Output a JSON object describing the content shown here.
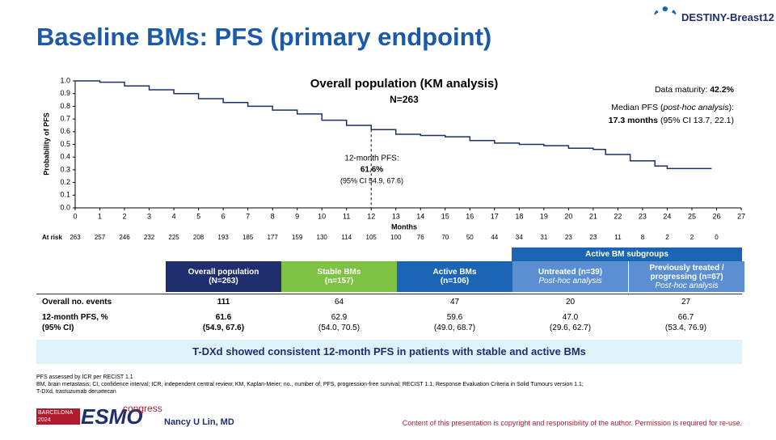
{
  "header": {
    "title": "Baseline BMs: PFS (primary endpoint)",
    "logo": "DESTINY-Breast12"
  },
  "chart_data": {
    "type": "step",
    "title": "Overall population (KM analysis)",
    "subtitle": "N=263",
    "x_label": "Months",
    "y_label": "Probability of PFS",
    "color": "#1f2f6e",
    "x": [
      0,
      1,
      2,
      3,
      4,
      5,
      6,
      7,
      8,
      9,
      10,
      11,
      12,
      13,
      14,
      15,
      16,
      17,
      18,
      19,
      20,
      21,
      21.5,
      22,
      22.5,
      23,
      23.5,
      24,
      25,
      25.8
    ],
    "values": [
      1,
      0.99,
      0.96,
      0.93,
      0.9,
      0.86,
      0.83,
      0.8,
      0.77,
      0.74,
      0.69,
      0.65,
      0.616,
      0.58,
      0.57,
      0.56,
      0.53,
      0.51,
      0.5,
      0.49,
      0.47,
      0.46,
      0.42,
      0.42,
      0.37,
      0.37,
      0.33,
      0.31,
      0.31,
      0.31
    ],
    "xlim": [
      0,
      27
    ],
    "xticks": [
      0,
      1,
      2,
      3,
      4,
      5,
      6,
      7,
      8,
      9,
      10,
      11,
      12,
      13,
      14,
      15,
      16,
      17,
      18,
      19,
      20,
      21,
      22,
      23,
      24,
      25,
      26,
      27
    ],
    "ylim": [
      0,
      1
    ],
    "yticks": [
      {
        "value": 0,
        "label": "0.0"
      },
      0.1,
      0.2,
      0.3,
      0.4,
      0.5,
      0.6,
      0.7,
      0.8,
      0.9,
      {
        "value": 1,
        "label": "1.0"
      }
    ],
    "annotation": {
      "label": "12-month PFS:",
      "value": "61.6%",
      "ci": "(95% CI 54.9, 67.6)",
      "x": 12
    },
    "at_risk": {
      "label": "At risk",
      "values": [
        263,
        257,
        246,
        232,
        225,
        208,
        193,
        185,
        177,
        159,
        130,
        114,
        105,
        100,
        76,
        70,
        50,
        44,
        34,
        31,
        23,
        23,
        11,
        8,
        2,
        2,
        0
      ]
    }
  },
  "info": {
    "maturity_label": "Data maturity:",
    "maturity_value": "42.2%",
    "median_label": "Median PFS (",
    "median_italic": "post-hoc analysis",
    "median_end": "):",
    "median_value": "17.3 months",
    "median_ci": "(95% CI 13.7, 22.1)"
  },
  "table": {
    "group_header": "Active BM subgroups",
    "columns": [
      {
        "title": "Overall population",
        "sub": "(N=263)"
      },
      {
        "title": "Stable BMs",
        "sub": "(n=157)"
      },
      {
        "title": "Active BMs",
        "sub": "(n=106)"
      },
      {
        "title": "Untreated (n=39)",
        "sub": "Post-hoc analysis"
      },
      {
        "title": "Previously treated / progressing (n=67)",
        "sub": "Post-hoc analysis"
      }
    ],
    "rows": [
      {
        "label": "Overall no. events",
        "cells": [
          "111",
          "64",
          "47",
          "20",
          "27"
        ]
      },
      {
        "label": "12-month PFS, %",
        "label2": "(95% CI)",
        "cells": [
          "61.6",
          "62.9",
          "59.6",
          "47.0",
          "66.7"
        ],
        "ci": [
          "(54.9, 67.6)",
          "(54.0, 70.5)",
          "(49.0, 68.7)",
          "(29.6, 62.7)",
          "(53.4, 76.9)"
        ]
      }
    ]
  },
  "banner": "T-DXd showed consistent 12-month PFS in patients with stable and active BMs",
  "footnotes": [
    "PFS assessed by ICR per RECIST 1.1",
    "BM, brain metastasis; CI, confidence interval; ICR, independent central review; KM, Kaplan-Meier; no., number of; PFS, progression-free survival; RECIST 1.1, Response Evaluation Criteria in Solid Tumours version 1.1;",
    "T-DXd, trastuzumab deruxtecan"
  ],
  "footer": {
    "city": "BARCELONA",
    "year": "2024",
    "brand": "ESMO",
    "brand2": "congress",
    "presenter": "Nancy U Lin, MD",
    "copyright": "Content of this presentation is copyright and responsibility of the author. Permission is required for re-use."
  }
}
